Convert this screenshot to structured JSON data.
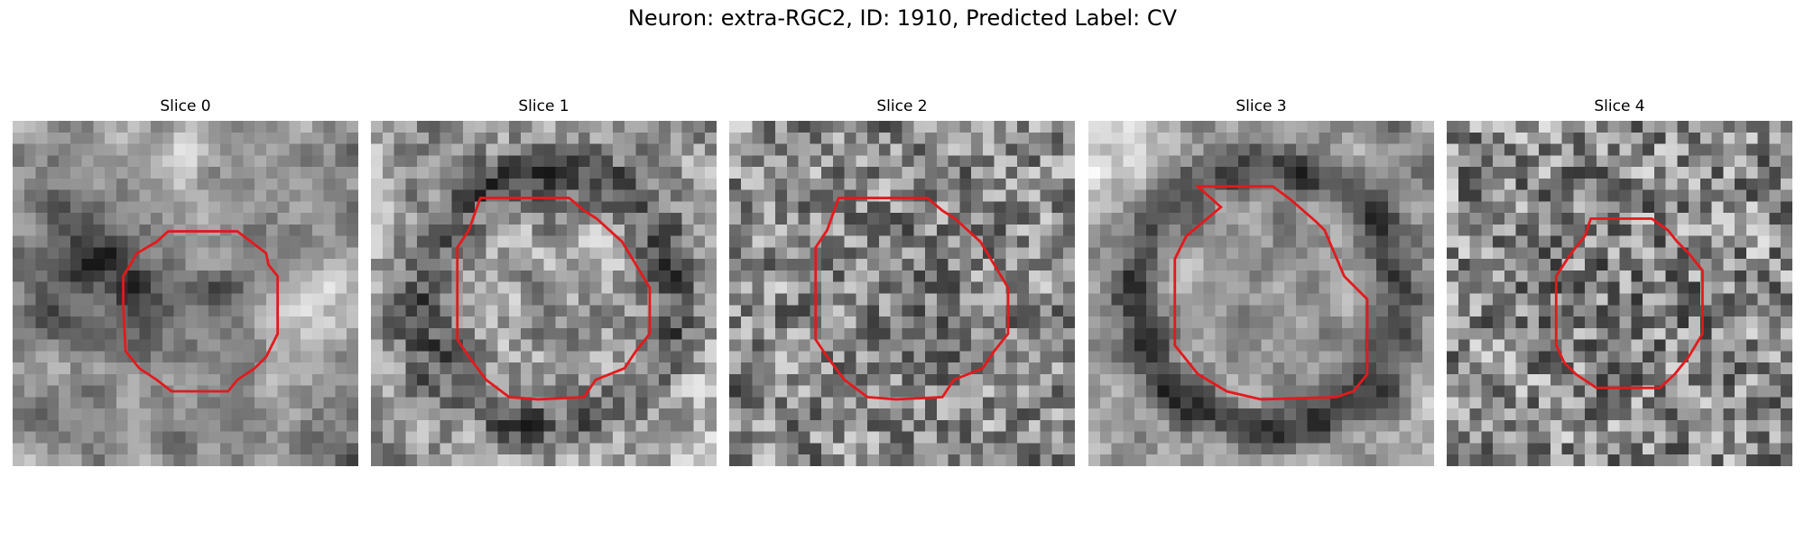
{
  "figure": {
    "title": "Neuron: extra-RGC2, ID: 1910, Predicted Label: CV"
  },
  "overlay_color": "#e31a1c",
  "colormap": "grayscale",
  "slices": [
    {
      "title": "Slice 0",
      "seed": 11,
      "smooth": 0.72,
      "soma": "darkpatch",
      "contour": "small"
    },
    {
      "title": "Slice 1",
      "seed": 23,
      "smooth": 0.45,
      "soma": "ring",
      "contour": "large"
    },
    {
      "title": "Slice 2",
      "seed": 37,
      "smooth": 0.25,
      "soma": "faint",
      "contour": "large"
    },
    {
      "title": "Slice 3",
      "seed": 49,
      "smooth": 0.7,
      "soma": "darkring",
      "contour": "large-shift"
    },
    {
      "title": "Slice 4",
      "seed": 61,
      "smooth": 0.15,
      "soma": "faint",
      "contour": "medium"
    }
  ]
}
